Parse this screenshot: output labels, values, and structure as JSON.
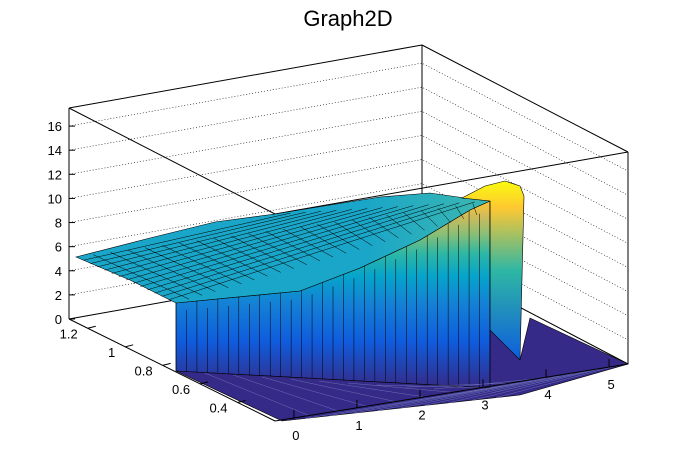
{
  "chart_data": {
    "type": "surface",
    "title": "Graph2D",
    "xlabel": "",
    "ylabel": "",
    "zlabel": "",
    "xlim": [
      -0.3,
      5.3
    ],
    "ylim": [
      0.2,
      1.3
    ],
    "zlim": [
      0,
      17.5
    ],
    "x_ticks": [
      "0",
      "1",
      "2",
      "3",
      "4",
      "5"
    ],
    "y_ticks": [
      "0.4",
      "0.6",
      "0.8",
      "1",
      "1.2"
    ],
    "z_ticks": [
      "0",
      "2",
      "4",
      "6",
      "8",
      "10",
      "12",
      "14",
      "16"
    ],
    "grid": true,
    "colormap": "parula",
    "palette": [
      "#352a87",
      "#0f5cdd",
      "#1481d6",
      "#06a4ca",
      "#2eb7a4",
      "#87bf77",
      "#d1bb59",
      "#fec832",
      "#f9fb0e"
    ],
    "surface_description_points": [
      {
        "x": -0.3,
        "y": 1.3,
        "z": 5.3
      },
      {
        "x": 0.0,
        "y": 1.3,
        "z": 5.5
      },
      {
        "x": 1.0,
        "y": 1.3,
        "z": 6.5
      },
      {
        "x": 2.0,
        "y": 1.3,
        "z": 7.8
      },
      {
        "x": 3.0,
        "y": 1.3,
        "z": 9.5
      },
      {
        "x": 3.5,
        "y": 1.3,
        "z": 10.0
      },
      {
        "x": 2.0,
        "y": 0.9,
        "z": 7.0
      },
      {
        "x": 3.0,
        "y": 0.9,
        "z": 8.5
      },
      {
        "x": 3.1,
        "y": 0.4,
        "z": 11.2
      },
      {
        "x": 3.3,
        "y": 0.4,
        "z": 11.8
      },
      {
        "x": 3.5,
        "y": 0.4,
        "z": 11.7
      },
      {
        "x": 3.65,
        "y": 0.4,
        "z": 0.0
      },
      {
        "x": 5.0,
        "y": 0.4,
        "z": 0.0
      }
    ]
  }
}
